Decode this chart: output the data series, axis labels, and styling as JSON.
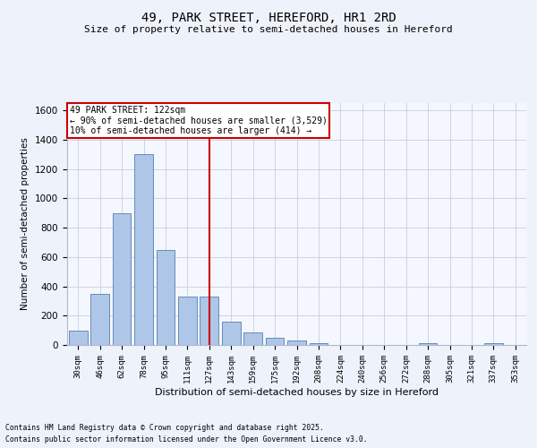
{
  "title": "49, PARK STREET, HEREFORD, HR1 2RD",
  "subtitle": "Size of property relative to semi-detached houses in Hereford",
  "xlabel": "Distribution of semi-detached houses by size in Hereford",
  "ylabel": "Number of semi-detached properties",
  "categories": [
    "30sqm",
    "46sqm",
    "62sqm",
    "78sqm",
    "95sqm",
    "111sqm",
    "127sqm",
    "143sqm",
    "159sqm",
    "175sqm",
    "192sqm",
    "208sqm",
    "224sqm",
    "240sqm",
    "256sqm",
    "272sqm",
    "288sqm",
    "305sqm",
    "321sqm",
    "337sqm",
    "353sqm"
  ],
  "values": [
    100,
    350,
    900,
    1300,
    650,
    330,
    330,
    160,
    85,
    50,
    30,
    10,
    0,
    0,
    0,
    0,
    10,
    0,
    0,
    10,
    0
  ],
  "bar_color": "#aec6e8",
  "bar_edge_color": "#5080b0",
  "vline_x_index": 6,
  "vline_color": "#cc0000",
  "vline_label": "49 PARK STREET: 122sqm",
  "annotation_line1": "← 90% of semi-detached houses are smaller (3,529)",
  "annotation_line2": "10% of semi-detached houses are larger (414) →",
  "ylim": [
    0,
    1650
  ],
  "yticks": [
    0,
    200,
    400,
    600,
    800,
    1000,
    1200,
    1400,
    1600
  ],
  "annotation_box_color": "#cc0000",
  "footer1": "Contains HM Land Registry data © Crown copyright and database right 2025.",
  "footer2": "Contains public sector information licensed under the Open Government Licence v3.0.",
  "bg_color": "#eef2fa",
  "plot_bg_color": "#f5f7ff",
  "grid_color": "#c8cce0"
}
